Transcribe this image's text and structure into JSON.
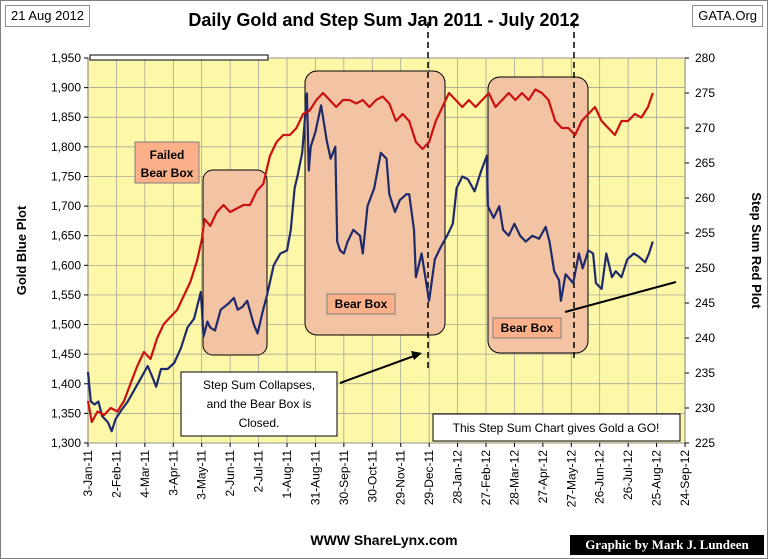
{
  "header": {
    "date": "21 Aug 2012",
    "source": "GATA.Org",
    "title": "Daily Gold and Step Sum Jan 2011 - July 2012"
  },
  "footer": {
    "site": "WWW ShareLynx.com",
    "credit": "Graphic by Mark J. Lundeen"
  },
  "annotations": {
    "failed_bear_box": [
      "Failed",
      "Bear Box"
    ],
    "bear_box_1": "Bear Box",
    "bear_box_2": "Bear Box",
    "collapse_note": [
      "Step Sum Collapses,",
      "and the Bear Box is",
      "Closed."
    ],
    "go_note": "This Step Sum Chart gives Gold a GO!"
  },
  "colors": {
    "gold_series": "#1f2a6b",
    "step_series": "#cc1111",
    "plot_bg": "#fdf7a8",
    "bear_box_fill": "#f2c4a4",
    "label_fill": "#fbb08a"
  },
  "chart_data": {
    "type": "line",
    "title": "Daily Gold and Step Sum Jan 2011 - July 2012",
    "ylabel": "Gold Blue Plot",
    "y2label": "Step Sum Red Plot",
    "ylim": [
      1300,
      1950
    ],
    "y2lim": [
      225,
      280
    ],
    "yticks": [
      "1,300",
      "1,350",
      "1,400",
      "1,450",
      "1,500",
      "1,550",
      "1,600",
      "1,650",
      "1,700",
      "1,750",
      "1,800",
      "1,850",
      "1,900",
      "1,950"
    ],
    "y2ticks": [
      "225",
      "230",
      "235",
      "240",
      "245",
      "250",
      "255",
      "260",
      "265",
      "270",
      "275",
      "280"
    ],
    "xticks": [
      "3-Jan-11",
      "2-Feb-11",
      "4-Mar-11",
      "3-Apr-11",
      "3-May-11",
      "2-Jun-11",
      "2-Jul-11",
      "1-Aug-11",
      "31-Aug-11",
      "30-Sep-11",
      "30-Oct-11",
      "29-Nov-11",
      "29-Dec-11",
      "28-Jan-12",
      "27-Feb-12",
      "28-Mar-12",
      "27-Apr-12",
      "27-May-12",
      "26-Jun-12",
      "26-Jul-12",
      "25-Aug-12",
      "24-Sep-12"
    ],
    "grid": true,
    "series": [
      {
        "name": "Gold Blue Plot",
        "axis": "left",
        "points": [
          [
            "2011-01-03",
            1420
          ],
          [
            "2011-01-06",
            1370
          ],
          [
            "2011-01-10",
            1365
          ],
          [
            "2011-01-14",
            1370
          ],
          [
            "2011-01-18",
            1345
          ],
          [
            "2011-01-24",
            1335
          ],
          [
            "2011-01-28",
            1320
          ],
          [
            "2011-02-01",
            1340
          ],
          [
            "2011-02-07",
            1355
          ],
          [
            "2011-02-14",
            1370
          ],
          [
            "2011-02-21",
            1390
          ],
          [
            "2011-02-28",
            1410
          ],
          [
            "2011-03-07",
            1430
          ],
          [
            "2011-03-11",
            1415
          ],
          [
            "2011-03-16",
            1395
          ],
          [
            "2011-03-21",
            1425
          ],
          [
            "2011-03-28",
            1425
          ],
          [
            "2011-04-04",
            1435
          ],
          [
            "2011-04-11",
            1460
          ],
          [
            "2011-04-18",
            1495
          ],
          [
            "2011-04-25",
            1510
          ],
          [
            "2011-05-02",
            1555
          ],
          [
            "2011-05-05",
            1480
          ],
          [
            "2011-05-09",
            1505
          ],
          [
            "2011-05-12",
            1495
          ],
          [
            "2011-05-17",
            1490
          ],
          [
            "2011-05-23",
            1525
          ],
          [
            "2011-05-31",
            1535
          ],
          [
            "2011-06-06",
            1545
          ],
          [
            "2011-06-10",
            1525
          ],
          [
            "2011-06-15",
            1530
          ],
          [
            "2011-06-20",
            1540
          ],
          [
            "2011-06-27",
            1500
          ],
          [
            "2011-07-01",
            1485
          ],
          [
            "2011-07-06",
            1520
          ],
          [
            "2011-07-11",
            1550
          ],
          [
            "2011-07-18",
            1600
          ],
          [
            "2011-07-25",
            1620
          ],
          [
            "2011-08-01",
            1625
          ],
          [
            "2011-08-05",
            1660
          ],
          [
            "2011-08-09",
            1730
          ],
          [
            "2011-08-12",
            1750
          ],
          [
            "2011-08-17",
            1790
          ],
          [
            "2011-08-22",
            1890
          ],
          [
            "2011-08-24",
            1760
          ],
          [
            "2011-08-26",
            1800
          ],
          [
            "2011-08-31",
            1825
          ],
          [
            "2011-09-06",
            1870
          ],
          [
            "2011-09-12",
            1810
          ],
          [
            "2011-09-16",
            1780
          ],
          [
            "2011-09-21",
            1800
          ],
          [
            "2011-09-23",
            1640
          ],
          [
            "2011-09-26",
            1625
          ],
          [
            "2011-09-30",
            1620
          ],
          [
            "2011-10-04",
            1640
          ],
          [
            "2011-10-10",
            1660
          ],
          [
            "2011-10-17",
            1650
          ],
          [
            "2011-10-20",
            1620
          ],
          [
            "2011-10-25",
            1700
          ],
          [
            "2011-11-01",
            1730
          ],
          [
            "2011-11-08",
            1790
          ],
          [
            "2011-11-14",
            1780
          ],
          [
            "2011-11-17",
            1720
          ],
          [
            "2011-11-23",
            1690
          ],
          [
            "2011-11-28",
            1710
          ],
          [
            "2011-12-05",
            1720
          ],
          [
            "2011-12-08",
            1720
          ],
          [
            "2011-12-13",
            1660
          ],
          [
            "2011-12-15",
            1580
          ],
          [
            "2011-12-21",
            1620
          ],
          [
            "2011-12-29",
            1540
          ],
          [
            "2012-01-04",
            1610
          ],
          [
            "2012-01-10",
            1630
          ],
          [
            "2012-01-17",
            1650
          ],
          [
            "2012-01-23",
            1670
          ],
          [
            "2012-01-27",
            1730
          ],
          [
            "2012-02-02",
            1750
          ],
          [
            "2012-02-08",
            1745
          ],
          [
            "2012-02-15",
            1725
          ],
          [
            "2012-02-22",
            1760
          ],
          [
            "2012-02-28",
            1785
          ],
          [
            "2012-02-29",
            1700
          ],
          [
            "2012-03-06",
            1680
          ],
          [
            "2012-03-12",
            1700
          ],
          [
            "2012-03-16",
            1660
          ],
          [
            "2012-03-22",
            1650
          ],
          [
            "2012-03-28",
            1670
          ],
          [
            "2012-04-03",
            1650
          ],
          [
            "2012-04-09",
            1640
          ],
          [
            "2012-04-16",
            1650
          ],
          [
            "2012-04-23",
            1645
          ],
          [
            "2012-04-30",
            1665
          ],
          [
            "2012-05-04",
            1640
          ],
          [
            "2012-05-09",
            1590
          ],
          [
            "2012-05-14",
            1575
          ],
          [
            "2012-05-16",
            1540
          ],
          [
            "2012-05-21",
            1585
          ],
          [
            "2012-05-29",
            1570
          ],
          [
            "2012-06-04",
            1620
          ],
          [
            "2012-06-08",
            1595
          ],
          [
            "2012-06-14",
            1625
          ],
          [
            "2012-06-19",
            1620
          ],
          [
            "2012-06-22",
            1570
          ],
          [
            "2012-06-28",
            1560
          ],
          [
            "2012-07-03",
            1620
          ],
          [
            "2012-07-09",
            1580
          ],
          [
            "2012-07-13",
            1590
          ],
          [
            "2012-07-19",
            1580
          ],
          [
            "2012-07-25",
            1610
          ],
          [
            "2012-08-01",
            1620
          ],
          [
            "2012-08-06",
            1615
          ],
          [
            "2012-08-13",
            1605
          ],
          [
            "2012-08-17",
            1620
          ],
          [
            "2012-08-21",
            1640
          ]
        ]
      },
      {
        "name": "Step Sum Red Plot",
        "axis": "right",
        "points": [
          [
            "2011-01-03",
            231
          ],
          [
            "2011-01-07",
            228
          ],
          [
            "2011-01-13",
            229.5
          ],
          [
            "2011-01-20",
            229
          ],
          [
            "2011-01-27",
            230
          ],
          [
            "2011-02-03",
            229.5
          ],
          [
            "2011-02-10",
            231
          ],
          [
            "2011-02-17",
            233.5
          ],
          [
            "2011-02-24",
            236
          ],
          [
            "2011-03-03",
            238
          ],
          [
            "2011-03-10",
            237
          ],
          [
            "2011-03-17",
            240
          ],
          [
            "2011-03-24",
            242
          ],
          [
            "2011-03-31",
            243
          ],
          [
            "2011-04-07",
            244
          ],
          [
            "2011-04-14",
            246
          ],
          [
            "2011-04-21",
            248
          ],
          [
            "2011-04-28",
            251
          ],
          [
            "2011-05-03",
            254
          ],
          [
            "2011-05-06",
            257
          ],
          [
            "2011-05-12",
            256
          ],
          [
            "2011-05-19",
            258
          ],
          [
            "2011-05-26",
            259
          ],
          [
            "2011-06-02",
            258
          ],
          [
            "2011-06-09",
            258.5
          ],
          [
            "2011-06-16",
            259
          ],
          [
            "2011-06-23",
            259
          ],
          [
            "2011-06-30",
            261
          ],
          [
            "2011-07-07",
            262
          ],
          [
            "2011-07-14",
            266
          ],
          [
            "2011-07-21",
            268
          ],
          [
            "2011-07-28",
            269
          ],
          [
            "2011-08-04",
            269
          ],
          [
            "2011-08-11",
            270
          ],
          [
            "2011-08-18",
            272
          ],
          [
            "2011-08-25",
            272.5
          ],
          [
            "2011-09-01",
            274
          ],
          [
            "2011-09-08",
            275
          ],
          [
            "2011-09-15",
            274
          ],
          [
            "2011-09-22",
            273
          ],
          [
            "2011-09-29",
            274
          ],
          [
            "2011-10-06",
            274
          ],
          [
            "2011-10-13",
            273.5
          ],
          [
            "2011-10-20",
            274
          ],
          [
            "2011-10-27",
            273
          ],
          [
            "2011-11-03",
            274
          ],
          [
            "2011-11-10",
            274.5
          ],
          [
            "2011-11-17",
            273.5
          ],
          [
            "2011-11-24",
            271
          ],
          [
            "2011-12-01",
            272
          ],
          [
            "2011-12-08",
            271
          ],
          [
            "2011-12-15",
            268
          ],
          [
            "2011-12-22",
            267
          ],
          [
            "2011-12-29",
            268
          ],
          [
            "2012-01-05",
            271
          ],
          [
            "2012-01-12",
            273
          ],
          [
            "2012-01-19",
            275
          ],
          [
            "2012-01-26",
            274
          ],
          [
            "2012-02-02",
            273
          ],
          [
            "2012-02-09",
            274
          ],
          [
            "2012-02-16",
            273
          ],
          [
            "2012-02-23",
            274
          ],
          [
            "2012-03-01",
            275
          ],
          [
            "2012-03-08",
            273
          ],
          [
            "2012-03-15",
            274
          ],
          [
            "2012-03-22",
            275
          ],
          [
            "2012-03-29",
            274
          ],
          [
            "2012-04-05",
            275
          ],
          [
            "2012-04-12",
            274
          ],
          [
            "2012-04-19",
            275.5
          ],
          [
            "2012-04-26",
            275
          ],
          [
            "2012-05-03",
            274
          ],
          [
            "2012-05-10",
            271
          ],
          [
            "2012-05-17",
            270
          ],
          [
            "2012-05-24",
            270
          ],
          [
            "2012-05-31",
            269
          ],
          [
            "2012-06-07",
            271
          ],
          [
            "2012-06-14",
            272
          ],
          [
            "2012-06-21",
            273
          ],
          [
            "2012-06-28",
            271
          ],
          [
            "2012-07-05",
            270
          ],
          [
            "2012-07-12",
            269
          ],
          [
            "2012-07-19",
            271
          ],
          [
            "2012-07-26",
            271
          ],
          [
            "2012-08-02",
            272
          ],
          [
            "2012-08-09",
            271.5
          ],
          [
            "2012-08-16",
            273
          ],
          [
            "2012-08-21",
            275
          ]
        ]
      }
    ]
  }
}
